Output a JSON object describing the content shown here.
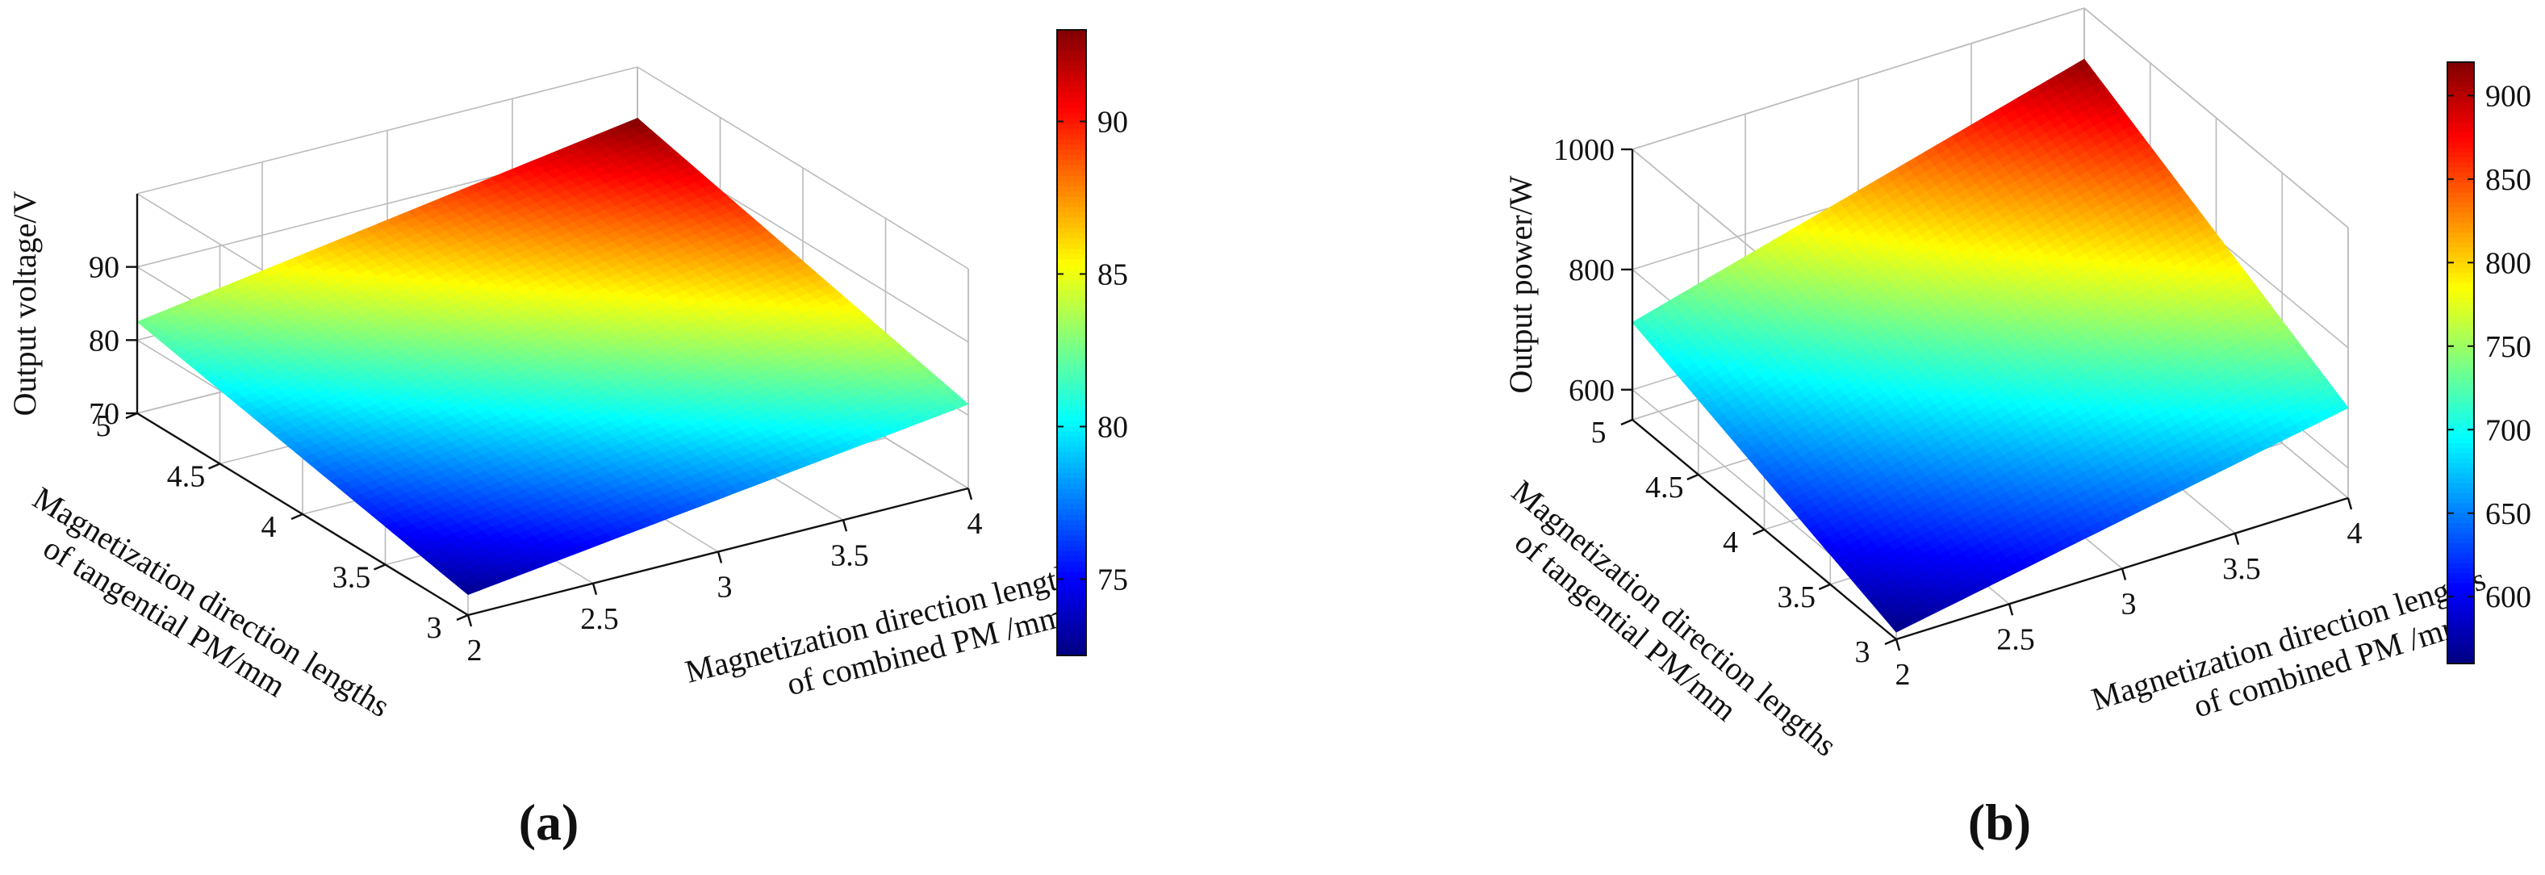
{
  "chart_data": [
    {
      "panel_label": "(a)",
      "type": "surface3d",
      "zlabel": "Output voltage/V",
      "xlabel_lines": [
        "Magnetization direction lengths",
        "of combined PM /mm"
      ],
      "ylabel_lines": [
        "Magnetization direction lengths",
        "of tangential PM/mm"
      ],
      "x": [
        2,
        2.5,
        3,
        3.5,
        4
      ],
      "y": [
        3,
        3.5,
        4,
        4.5,
        5
      ],
      "xticks": [
        "2",
        "2.5",
        "3",
        "3.5",
        "4"
      ],
      "yticks": [
        "3",
        "3.5",
        "4",
        "4.5",
        "5"
      ],
      "zticks": [
        "70",
        "80",
        "90"
      ],
      "zlim": [
        70,
        100
      ],
      "corner_values": {
        "x2_y3": 72.8,
        "x4_y3": 81.5,
        "x2_y5": 82.5,
        "x4_y5": 93
      },
      "colorbar": {
        "ticks": [
          "75",
          "80",
          "85",
          "90"
        ],
        "range": [
          72.5,
          93
        ]
      },
      "colormap": "jet"
    },
    {
      "panel_label": "(b)",
      "type": "surface3d",
      "zlabel": "Output power/W",
      "xlabel_lines": [
        "Magnetization direction lengths",
        "of combined PM /mm"
      ],
      "ylabel_lines": [
        "Magnetization direction lengths",
        "of tangential PM/mm"
      ],
      "x": [
        2,
        2.5,
        3,
        3.5,
        4
      ],
      "y": [
        3,
        3.5,
        4,
        4.5,
        5
      ],
      "xticks": [
        "2",
        "2.5",
        "3",
        "3.5",
        "4"
      ],
      "yticks": [
        "3",
        "3.5",
        "4",
        "4.5",
        "5"
      ],
      "zticks": [
        "600",
        "800",
        "1000"
      ],
      "zlim": [
        550,
        1000
      ],
      "corner_values": {
        "x2_y3": 562,
        "x4_y3": 700,
        "x2_y5": 712,
        "x4_y5": 915
      },
      "colorbar": {
        "ticks": [
          "600",
          "650",
          "700",
          "750",
          "800",
          "850",
          "900"
        ],
        "range": [
          560,
          920
        ]
      },
      "colormap": "jet"
    }
  ]
}
